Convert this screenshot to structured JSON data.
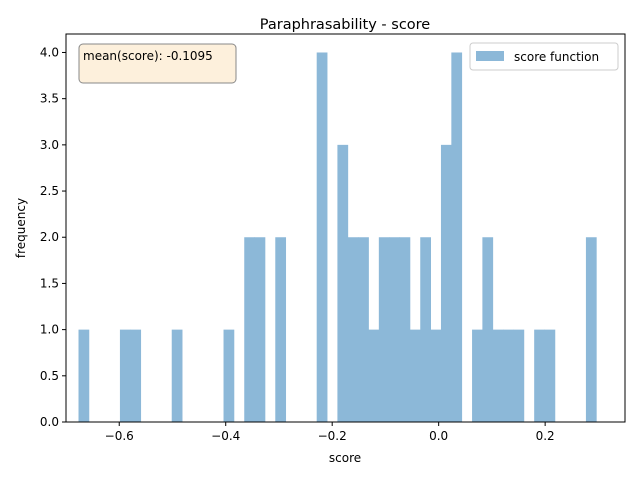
{
  "chart_data": {
    "type": "bar",
    "title": "Paraphrasability - score",
    "xlabel": "score",
    "ylabel": "frequency",
    "xlim": [
      -0.7,
      0.35
    ],
    "ylim": [
      0,
      4.2
    ],
    "grid": false,
    "legend_position": "top-right",
    "annotation": "mean(score): -0.1095",
    "xticks": [
      {
        "value": -0.6,
        "label": "−0.6"
      },
      {
        "value": -0.4,
        "label": "−0.4"
      },
      {
        "value": -0.2,
        "label": "−0.2"
      },
      {
        "value": 0.0,
        "label": "0.0"
      },
      {
        "value": 0.2,
        "label": "0.2"
      }
    ],
    "yticks": [
      {
        "value": 0.0,
        "label": "0.0"
      },
      {
        "value": 0.5,
        "label": "0.5"
      },
      {
        "value": 1.0,
        "label": "1.0"
      },
      {
        "value": 1.5,
        "label": "1.5"
      },
      {
        "value": 2.0,
        "label": "2.0"
      },
      {
        "value": 2.5,
        "label": "2.5"
      },
      {
        "value": 3.0,
        "label": "3.0"
      },
      {
        "value": 3.5,
        "label": "3.5"
      },
      {
        "value": 4.0,
        "label": "4.0"
      }
    ],
    "bin_width": 0.01945,
    "series": [
      {
        "name": "score function",
        "color": "#8cb8d8",
        "bins": [
          {
            "x0": -0.6765,
            "count": 1
          },
          {
            "x0": -0.5987,
            "count": 1
          },
          {
            "x0": -0.5792,
            "count": 1
          },
          {
            "x0": -0.5014,
            "count": 1
          },
          {
            "x0": -0.4041,
            "count": 1
          },
          {
            "x0": -0.3652,
            "count": 2
          },
          {
            "x0": -0.3458,
            "count": 2
          },
          {
            "x0": -0.3069,
            "count": 2
          },
          {
            "x0": -0.2291,
            "count": 4
          },
          {
            "x0": -0.1902,
            "count": 3
          },
          {
            "x0": -0.1707,
            "count": 2
          },
          {
            "x0": -0.1513,
            "count": 2
          },
          {
            "x0": -0.1318,
            "count": 1
          },
          {
            "x0": -0.1124,
            "count": 2
          },
          {
            "x0": -0.0929,
            "count": 2
          },
          {
            "x0": -0.0735,
            "count": 2
          },
          {
            "x0": -0.054,
            "count": 1
          },
          {
            "x0": -0.0346,
            "count": 2
          },
          {
            "x0": -0.0151,
            "count": 1
          },
          {
            "x0": 0.0043,
            "count": 3
          },
          {
            "x0": 0.0238,
            "count": 4
          },
          {
            "x0": 0.0627,
            "count": 1
          },
          {
            "x0": 0.0821,
            "count": 2
          },
          {
            "x0": 0.1016,
            "count": 1
          },
          {
            "x0": 0.121,
            "count": 1
          },
          {
            "x0": 0.1405,
            "count": 1
          },
          {
            "x0": 0.1794,
            "count": 1
          },
          {
            "x0": 0.1988,
            "count": 1
          },
          {
            "x0": 0.2766,
            "count": 2
          }
        ]
      }
    ]
  }
}
